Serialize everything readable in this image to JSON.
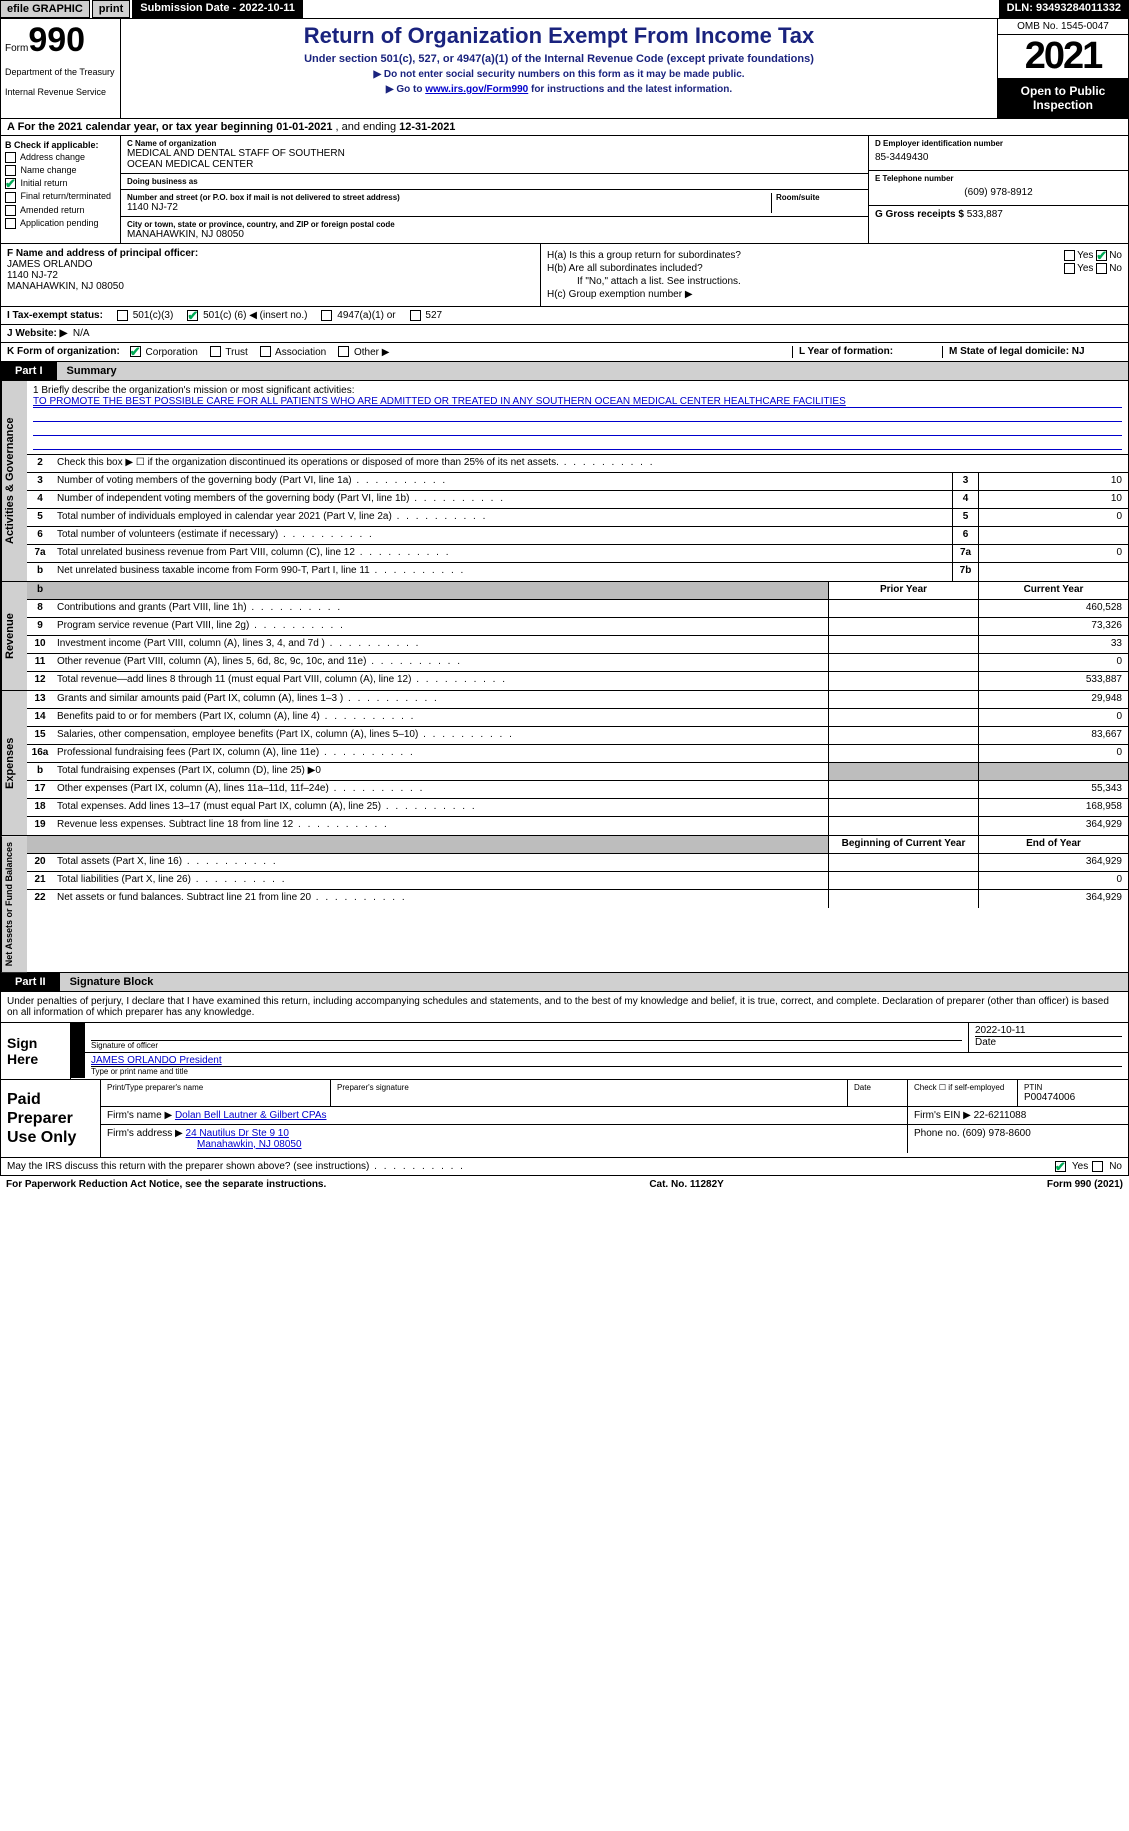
{
  "topbar": {
    "efile": "efile GRAPHIC",
    "print": "print",
    "submission": "Submission Date - 2022-10-11",
    "dln": "DLN: 93493284011332"
  },
  "header": {
    "form_word": "Form",
    "form_num": "990",
    "dept": "Department of the Treasury",
    "irs": "Internal Revenue Service",
    "title": "Return of Organization Exempt From Income Tax",
    "sub1": "Under section 501(c), 527, or 4947(a)(1) of the Internal Revenue Code (except private foundations)",
    "sub2": "▶ Do not enter social security numbers on this form as it may be made public.",
    "sub3_pre": "▶ Go to ",
    "sub3_link": "www.irs.gov/Form990",
    "sub3_post": " for instructions and the latest information.",
    "omb": "OMB No. 1545-0047",
    "year": "2021",
    "otp": "Open to Public Inspection"
  },
  "cal": {
    "text_a": "A For the 2021 calendar year, or tax year beginning ",
    "begin": "01-01-2021",
    "mid": " , and ending ",
    "end": "12-31-2021"
  },
  "colB": {
    "label": "B Check if applicable:",
    "items": [
      "Address change",
      "Name change",
      "Initial return",
      "Final return/terminated",
      "Amended return",
      "Application pending"
    ],
    "checked_idx": 2
  },
  "colC": {
    "name_lbl": "C Name of organization",
    "name1": "MEDICAL AND DENTAL STAFF OF SOUTHERN",
    "name2": "OCEAN MEDICAL CENTER",
    "dba_lbl": "Doing business as",
    "addr_lbl": "Number and street (or P.O. box if mail is not delivered to street address)",
    "room_lbl": "Room/suite",
    "addr": "1140 NJ-72",
    "city_lbl": "City or town, state or province, country, and ZIP or foreign postal code",
    "city": "MANAHAWKIN, NJ  08050"
  },
  "colD": {
    "ein_lbl": "D Employer identification number",
    "ein": "85-3449430",
    "tel_lbl": "E Telephone number",
    "tel": "(609) 978-8912",
    "gross_lbl": "G Gross receipts $",
    "gross": "533,887"
  },
  "secF": {
    "lbl": "F Name and address of principal officer:",
    "name": "JAMES ORLANDO",
    "addr1": "1140 NJ-72",
    "addr2": "MANAHAWKIN, NJ  08050",
    "ha": "H(a)  Is this a group return for subordinates?",
    "hb": "H(b)  Are all subordinates included?",
    "hb_note": "If \"No,\" attach a list. See instructions.",
    "hc": "H(c)  Group exemption number ▶",
    "yes": "Yes",
    "no": "No"
  },
  "lineI": {
    "lbl": "I  Tax-exempt status:",
    "o1": "501(c)(3)",
    "o2_pre": "501(c) (",
    "o2_num": "6",
    "o2_post": ") ◀ (insert no.)",
    "o3": "4947(a)(1) or",
    "o4": "527"
  },
  "lineJ": {
    "lbl": "J  Website: ▶",
    "val": "N/A"
  },
  "lineK": {
    "lbl": "K Form of organization:",
    "opts": [
      "Corporation",
      "Trust",
      "Association",
      "Other ▶"
    ],
    "l_lbl": "L Year of formation:",
    "m_lbl": "M State of legal domicile: NJ"
  },
  "part1": {
    "num": "Part I",
    "title": "Summary"
  },
  "tabs": {
    "ag": "Activities & Governance",
    "rev": "Revenue",
    "exp": "Expenses",
    "na": "Net Assets or Fund Balances"
  },
  "mission": {
    "q": "1   Briefly describe the organization's mission or most significant activities:",
    "txt": "TO PROMOTE THE BEST POSSIBLE CARE FOR ALL PATIENTS WHO ARE ADMITTED OR TREATED IN ANY SOUTHERN OCEAN MEDICAL CENTER HEALTHCARE FACILITIES"
  },
  "ag_rows": [
    {
      "n": "2",
      "t": "Check this box ▶ ☐  if the organization discontinued its operations or disposed of more than 25% of its net assets."
    },
    {
      "n": "3",
      "t": "Number of voting members of the governing body (Part VI, line 1a)",
      "box": "3",
      "v": "10"
    },
    {
      "n": "4",
      "t": "Number of independent voting members of the governing body (Part VI, line 1b)",
      "box": "4",
      "v": "10"
    },
    {
      "n": "5",
      "t": "Total number of individuals employed in calendar year 2021 (Part V, line 2a)",
      "box": "5",
      "v": "0"
    },
    {
      "n": "6",
      "t": "Total number of volunteers (estimate if necessary)",
      "box": "6",
      "v": ""
    },
    {
      "n": "7a",
      "t": "Total unrelated business revenue from Part VIII, column (C), line 12",
      "box": "7a",
      "v": "0"
    },
    {
      "n": "b",
      "t": "Net unrelated business taxable income from Form 990-T, Part I, line 11",
      "box": "7b",
      "v": ""
    }
  ],
  "col_hdr": {
    "prior": "Prior Year",
    "current": "Current Year",
    "boc": "Beginning of Current Year",
    "eoy": "End of Year"
  },
  "rev_rows": [
    {
      "n": "8",
      "t": "Contributions and grants (Part VIII, line 1h)",
      "p": "",
      "c": "460,528"
    },
    {
      "n": "9",
      "t": "Program service revenue (Part VIII, line 2g)",
      "p": "",
      "c": "73,326"
    },
    {
      "n": "10",
      "t": "Investment income (Part VIII, column (A), lines 3, 4, and 7d )",
      "p": "",
      "c": "33"
    },
    {
      "n": "11",
      "t": "Other revenue (Part VIII, column (A), lines 5, 6d, 8c, 9c, 10c, and 11e)",
      "p": "",
      "c": "0"
    },
    {
      "n": "12",
      "t": "Total revenue—add lines 8 through 11 (must equal Part VIII, column (A), line 12)",
      "p": "",
      "c": "533,887"
    }
  ],
  "exp_rows": [
    {
      "n": "13",
      "t": "Grants and similar amounts paid (Part IX, column (A), lines 1–3 )",
      "p": "",
      "c": "29,948"
    },
    {
      "n": "14",
      "t": "Benefits paid to or for members (Part IX, column (A), line 4)",
      "p": "",
      "c": "0"
    },
    {
      "n": "15",
      "t": "Salaries, other compensation, employee benefits (Part IX, column (A), lines 5–10)",
      "p": "",
      "c": "83,667"
    },
    {
      "n": "16a",
      "t": "Professional fundraising fees (Part IX, column (A), line 11e)",
      "p": "",
      "c": "0"
    },
    {
      "n": "b",
      "t": "Total fundraising expenses (Part IX, column (D), line 25) ▶0",
      "grey": true
    },
    {
      "n": "17",
      "t": "Other expenses (Part IX, column (A), lines 11a–11d, 11f–24e)",
      "p": "",
      "c": "55,343"
    },
    {
      "n": "18",
      "t": "Total expenses. Add lines 13–17 (must equal Part IX, column (A), line 25)",
      "p": "",
      "c": "168,958"
    },
    {
      "n": "19",
      "t": "Revenue less expenses. Subtract line 18 from line 12",
      "p": "",
      "c": "364,929"
    }
  ],
  "na_rows": [
    {
      "n": "20",
      "t": "Total assets (Part X, line 16)",
      "p": "",
      "c": "364,929"
    },
    {
      "n": "21",
      "t": "Total liabilities (Part X, line 26)",
      "p": "",
      "c": "0"
    },
    {
      "n": "22",
      "t": "Net assets or fund balances. Subtract line 21 from line 20",
      "p": "",
      "c": "364,929"
    }
  ],
  "part2": {
    "num": "Part II",
    "title": "Signature Block"
  },
  "sig": {
    "decl": "Under penalties of perjury, I declare that I have examined this return, including accompanying schedules and statements, and to the best of my knowledge and belief, it is true, correct, and complete. Declaration of preparer (other than officer) is based on all information of which preparer has any knowledge.",
    "sign_here": "Sign Here",
    "sig_off": "Signature of officer",
    "date": "Date",
    "date_val": "2022-10-11",
    "name": "JAMES ORLANDO  President",
    "name_lbl": "Type or print name and title"
  },
  "paid": {
    "title": "Paid Preparer Use Only",
    "h1": "Print/Type preparer's name",
    "h2": "Preparer's signature",
    "h3": "Date",
    "h4_pre": "Check ☐ if self-employed",
    "h5": "PTIN",
    "ptin": "P00474006",
    "firm_lbl": "Firm's name    ▶",
    "firm": "Dolan Bell Lautner & Gilbert CPAs",
    "ein_lbl": "Firm's EIN ▶",
    "ein": "22-6211088",
    "addr_lbl": "Firm's address ▶",
    "addr1": "24 Nautilus Dr Ste 9 10",
    "addr2": "Manahawkin, NJ  08050",
    "ph_lbl": "Phone no.",
    "ph": "(609) 978-8600"
  },
  "foot": {
    "q": "May the IRS discuss this return with the preparer shown above? (see instructions)",
    "yes": "Yes",
    "no": "No"
  },
  "pra": {
    "l": "For Paperwork Reduction Act Notice, see the separate instructions.",
    "c": "Cat. No. 11282Y",
    "r": "Form 990 (2021)"
  }
}
